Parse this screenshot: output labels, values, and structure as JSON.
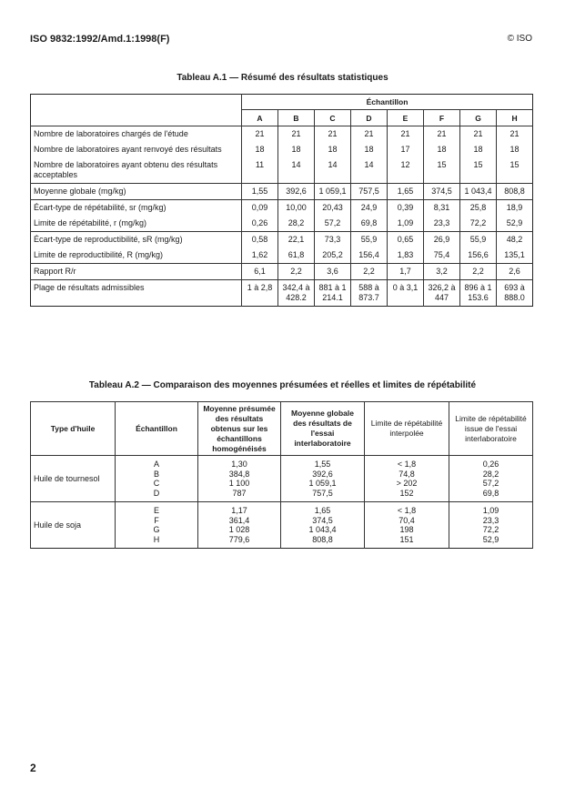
{
  "header": {
    "doc_id": "ISO 9832:1992/Amd.1:1998(F)",
    "copyright": "© ISO"
  },
  "table1": {
    "title": "Tableau A.1 — Résumé des résultats statistiques",
    "group_header": "Échantillon",
    "columns": [
      "A",
      "B",
      "C",
      "D",
      "E",
      "F",
      "G",
      "H"
    ],
    "rows": [
      {
        "label": "Nombre de laboratoires chargés de l'étude",
        "values": [
          "21",
          "21",
          "21",
          "21",
          "21",
          "21",
          "21",
          "21"
        ]
      },
      {
        "label": "Nombre de laboratoires ayant renvoyé des résultats",
        "values": [
          "18",
          "18",
          "18",
          "18",
          "17",
          "18",
          "18",
          "18"
        ]
      },
      {
        "label": "Nombre de laboratoires ayant obtenu des résultats acceptables",
        "values": [
          "11",
          "14",
          "14",
          "14",
          "12",
          "15",
          "15",
          "15"
        ]
      },
      {
        "label": "Moyenne globale (mg/kg)",
        "values": [
          "1,55",
          "392,6",
          "1 059,1",
          "757,5",
          "1,65",
          "374,5",
          "1 043,4",
          "808,8"
        ]
      },
      {
        "label": "Écart-type de répétabilité, sr (mg/kg)",
        "values": [
          "0,09",
          "10,00",
          "20,43",
          "24,9",
          "0,39",
          "8,31",
          "25,8",
          "18,9"
        ]
      },
      {
        "label": "Limite de répétabilité, r (mg/kg)",
        "values": [
          "0,26",
          "28,2",
          "57,2",
          "69,8",
          "1,09",
          "23,3",
          "72,2",
          "52,9"
        ]
      },
      {
        "label": "Écart-type de reproductibilité, sR (mg/kg)",
        "values": [
          "0,58",
          "22,1",
          "73,3",
          "55,9",
          "0,65",
          "26,9",
          "55,9",
          "48,2"
        ]
      },
      {
        "label": "Limite de reproductibilité, R (mg/kg)",
        "values": [
          "1,62",
          "61,8",
          "205,2",
          "156,4",
          "1,83",
          "75,4",
          "156,6",
          "135,1"
        ]
      },
      {
        "label": "Rapport R/r",
        "values": [
          "6,1",
          "2,2",
          "3,6",
          "2,2",
          "1,7",
          "3,2",
          "2,2",
          "2,6"
        ]
      },
      {
        "label": "Plage de résultats admissibles",
        "values": [
          "1 à 2,8",
          "342,4 à 428.2",
          "881 à 1 214.1",
          "588 à 873.7",
          "0 à 3,1",
          "326,2 à 447",
          "896 à 1 153.6",
          "693 à 888.0"
        ]
      }
    ]
  },
  "table2": {
    "title": "Tableau A.2 — Comparaison des moyennes présumées et réelles et limites de répétabilité",
    "headers": [
      "Type d'huile",
      "Échantillon",
      "Moyenne présumée des résultats obtenus sur les échantillons homogénéisés",
      "Moyenne globale des résultats de l'essai interlaboratoire",
      "Limite de répétabilité interpolée",
      "Limite de répétabilité issue de l'essai interlaboratoire"
    ],
    "groups": [
      {
        "type": "Huile de tournesol",
        "samples": [
          "A",
          "B",
          "C",
          "D"
        ],
        "presumed": [
          "1,30",
          "384,8",
          "1 100",
          "787"
        ],
        "global": [
          "1,55",
          "392,6",
          "1 059,1",
          "757,5"
        ],
        "interpolated": [
          "< 1,8",
          "74,8",
          "> 202",
          "152"
        ],
        "interlab": [
          "0,26",
          "28,2",
          "57,2",
          "69,8"
        ]
      },
      {
        "type": "Huile de soja",
        "samples": [
          "E",
          "F",
          "G",
          "H"
        ],
        "presumed": [
          "1,17",
          "361,4",
          "1 028",
          "779,6"
        ],
        "global": [
          "1,65",
          "374,5",
          "1 043,4",
          "808,8"
        ],
        "interpolated": [
          "< 1,8",
          "70,4",
          "198",
          "151"
        ],
        "interlab": [
          "1,09",
          "23,3",
          "72,2",
          "52,9"
        ]
      }
    ]
  },
  "page_number": "2"
}
